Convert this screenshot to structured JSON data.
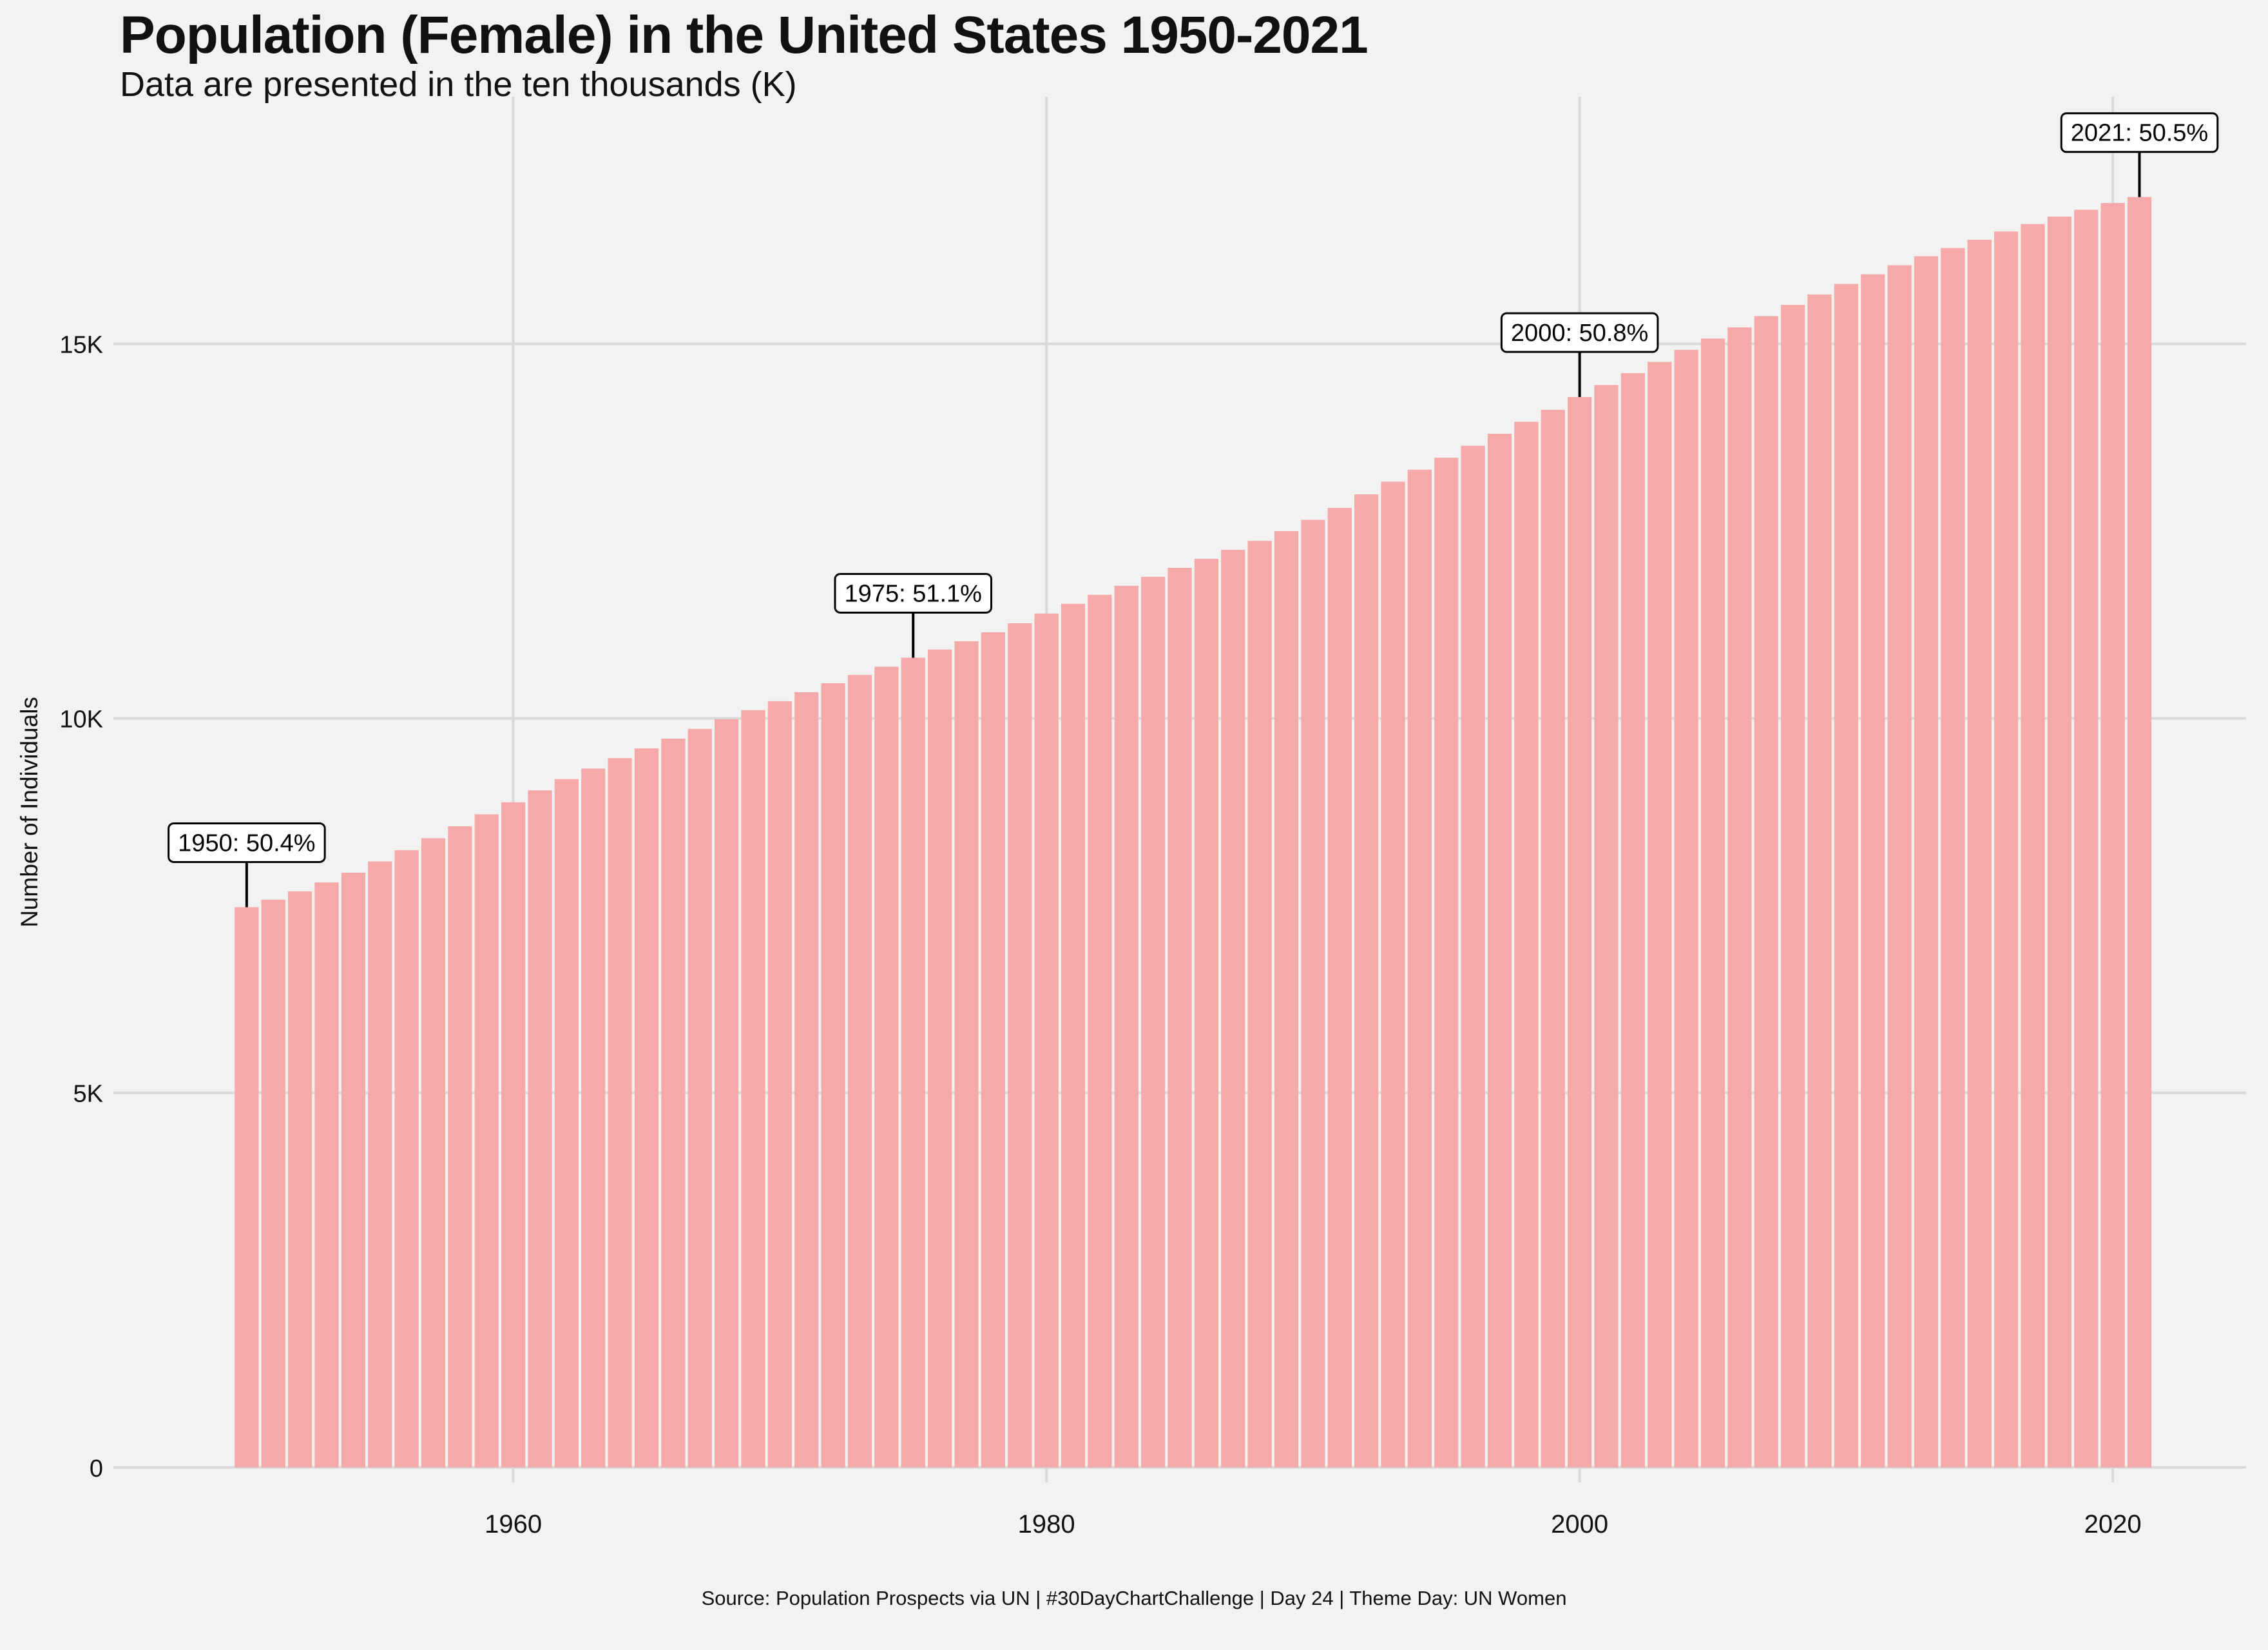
{
  "title": "Population (Female) in the United States 1950-2021",
  "subtitle": "Data are presented in the ten thousands (K)",
  "caption": "Source: Population Prospects via UN | #30DayChartChallenge | Day 24 | Theme Day: UN Women",
  "colors": {
    "background": "#f2f2f2",
    "bar": "#f5a9a8",
    "grid": "#d9d9d9",
    "text": "#111111"
  },
  "chart_data": {
    "type": "bar",
    "xlabel": "",
    "ylabel": "Number of Individuals",
    "xlim": [
      1945,
      2025
    ],
    "ylim": [
      -200,
      18300
    ],
    "x_ticks": [
      1960,
      1980,
      2000,
      2020
    ],
    "y_ticks": [
      0,
      5000,
      10000,
      15000
    ],
    "y_tick_labels": [
      "0",
      "5K",
      "10K",
      "15K"
    ],
    "grid": true,
    "legend": "none",
    "x": [
      1950,
      1951,
      1952,
      1953,
      1954,
      1955,
      1956,
      1957,
      1958,
      1959,
      1960,
      1961,
      1962,
      1963,
      1964,
      1965,
      1966,
      1967,
      1968,
      1969,
      1970,
      1971,
      1972,
      1973,
      1974,
      1975,
      1976,
      1977,
      1978,
      1979,
      1980,
      1981,
      1982,
      1983,
      1984,
      1985,
      1986,
      1987,
      1988,
      1989,
      1990,
      1991,
      1992,
      1993,
      1994,
      1995,
      1996,
      1997,
      1998,
      1999,
      2000,
      2001,
      2002,
      2003,
      2004,
      2005,
      2006,
      2007,
      2008,
      2009,
      2010,
      2011,
      2012,
      2013,
      2014,
      2015,
      2016,
      2017,
      2018,
      2019,
      2020,
      2021
    ],
    "values": [
      7480,
      7580,
      7690,
      7810,
      7940,
      8090,
      8240,
      8400,
      8560,
      8720,
      8880,
      9040,
      9190,
      9330,
      9470,
      9600,
      9730,
      9860,
      9990,
      10110,
      10230,
      10350,
      10470,
      10580,
      10690,
      10810,
      10920,
      11030,
      11150,
      11270,
      11400,
      11530,
      11650,
      11770,
      11890,
      12010,
      12130,
      12250,
      12370,
      12500,
      12650,
      12810,
      12990,
      13160,
      13320,
      13480,
      13640,
      13800,
      13960,
      14120,
      14290,
      14450,
      14610,
      14760,
      14920,
      15070,
      15220,
      15370,
      15520,
      15660,
      15800,
      15930,
      16050,
      16170,
      16280,
      16390,
      16500,
      16600,
      16700,
      16790,
      16880,
      16960
    ],
    "annotations": [
      {
        "x": 1950,
        "label": "1950: 50.4%"
      },
      {
        "x": 1975,
        "label": "1975: 51.1%"
      },
      {
        "x": 2000,
        "label": "2000: 50.8%"
      },
      {
        "x": 2021,
        "label": "2021: 50.5%"
      }
    ]
  }
}
